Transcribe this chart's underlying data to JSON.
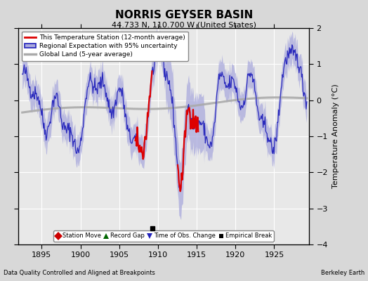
{
  "title": "NORRIS GEYSER BASIN",
  "subtitle": "44.733 N, 110.700 W (United States)",
  "ylabel": "Temperature Anomaly (°C)",
  "xlabel_note": "Data Quality Controlled and Aligned at Breakpoints",
  "source_note": "Berkeley Earth",
  "xlim": [
    1892.0,
    1929.5
  ],
  "ylim": [
    -4,
    2
  ],
  "yticks": [
    -4,
    -3,
    -2,
    -1,
    0,
    1,
    2
  ],
  "xticks": [
    1895,
    1900,
    1905,
    1910,
    1915,
    1920,
    1925
  ],
  "bg_color": "#d8d8d8",
  "plot_bg_color": "#e8e8e8",
  "regional_color": "#2222bb",
  "regional_fill_color": "#aaaadd",
  "station_color": "#dd0000",
  "global_color": "#aaaaaa",
  "empirical_break_year": 1909.3,
  "seed": 42
}
